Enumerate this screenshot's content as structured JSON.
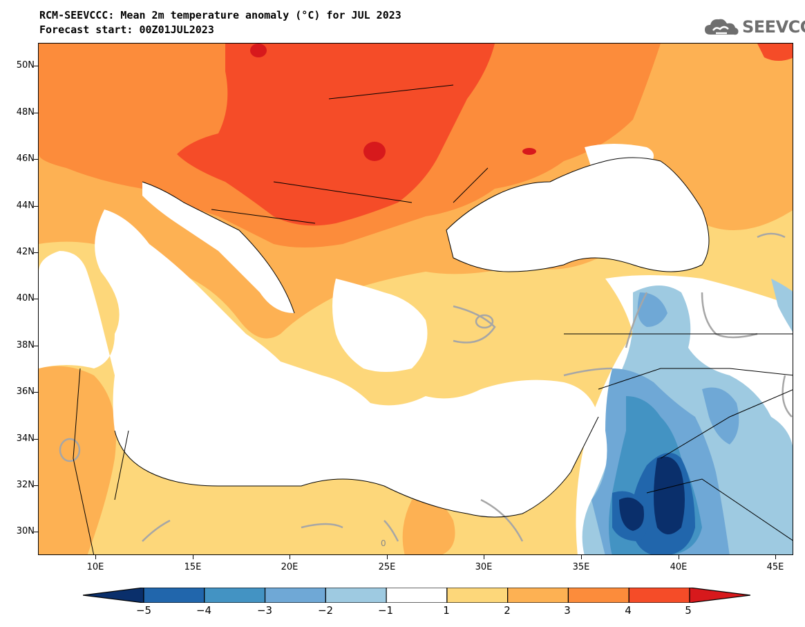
{
  "title": {
    "line1": "RCM-SEEVCCC: Mean 2m temperature anomaly (°C) for JUL 2023",
    "line2": "Forecast start: 00Z01JUL2023"
  },
  "logo": {
    "text": "SEEVCCC",
    "icon": "cloud-logo-icon"
  },
  "map": {
    "lat_labels": [
      "50N",
      "48N",
      "46N",
      "44N",
      "42N",
      "40N",
      "38N",
      "36N",
      "34N",
      "32N",
      "30N"
    ],
    "lon_labels": [
      "10E",
      "15E",
      "20E",
      "25E",
      "30E",
      "35E",
      "40E",
      "45E"
    ],
    "contour_label": "0"
  },
  "colorbar": {
    "labels": [
      "−5",
      "−4",
      "−3",
      "−2",
      "−1",
      "1",
      "2",
      "3",
      "4",
      "5"
    ],
    "colors": [
      "#0a2f6b",
      "#2166ac",
      "#4393c3",
      "#6fa8d6",
      "#9ecae1",
      "#ffffff",
      "#fdd77a",
      "#fdb153",
      "#fc8c3b",
      "#f54c28",
      "#d7191c"
    ]
  }
}
